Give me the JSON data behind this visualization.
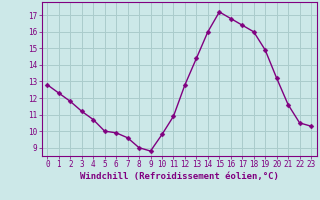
{
  "x": [
    0,
    1,
    2,
    3,
    4,
    5,
    6,
    7,
    8,
    9,
    10,
    11,
    12,
    13,
    14,
    15,
    16,
    17,
    18,
    19,
    20,
    21,
    22,
    23
  ],
  "y": [
    12.8,
    12.3,
    11.8,
    11.2,
    10.7,
    10.0,
    9.9,
    9.6,
    9.0,
    8.8,
    9.8,
    10.9,
    12.8,
    14.4,
    16.0,
    17.2,
    16.8,
    16.4,
    16.0,
    14.9,
    13.2,
    11.6,
    10.5,
    10.3
  ],
  "line_color": "#800080",
  "marker": "D",
  "marker_size": 2.5,
  "bg_color": "#cce8e8",
  "grid_color": "#aacccc",
  "xlabel": "Windchill (Refroidissement éolien,°C)",
  "ylim": [
    8.5,
    17.8
  ],
  "yticks": [
    9,
    10,
    11,
    12,
    13,
    14,
    15,
    16,
    17
  ],
  "xlim": [
    -0.5,
    23.5
  ],
  "xticks": [
    0,
    1,
    2,
    3,
    4,
    5,
    6,
    7,
    8,
    9,
    10,
    11,
    12,
    13,
    14,
    15,
    16,
    17,
    18,
    19,
    20,
    21,
    22,
    23
  ],
  "tick_label_color": "#800080",
  "xlabel_color": "#800080",
  "tick_fontsize": 5.5,
  "xlabel_fontsize": 6.5,
  "line_width": 1.0
}
